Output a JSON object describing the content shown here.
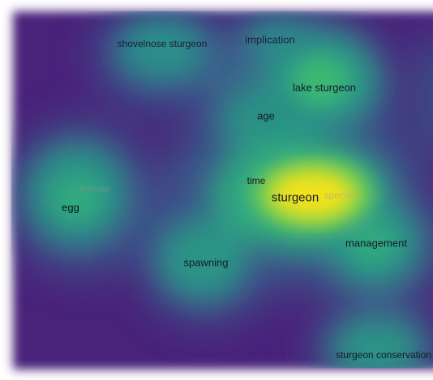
{
  "density_map": {
    "background_color": "#48217a",
    "colormap": [
      "#48217a",
      "#3a4e8c",
      "#2b8a8a",
      "#2fb47c",
      "#8ad04a",
      "#f0e21a"
    ],
    "terms": [
      {
        "id": "shovelnose-sturgeon",
        "label": "shovelnose sturgeon"
      },
      {
        "id": "implication",
        "label": "implication"
      },
      {
        "id": "lake-sturgeon",
        "label": "lake sturgeon"
      },
      {
        "id": "age",
        "label": "age"
      },
      {
        "id": "female",
        "label": "female"
      },
      {
        "id": "egg",
        "label": "egg"
      },
      {
        "id": "time",
        "label": "time"
      },
      {
        "id": "sturgeon",
        "label": "sturgeon"
      },
      {
        "id": "species",
        "label": "species"
      },
      {
        "id": "management",
        "label": "management"
      },
      {
        "id": "spawning",
        "label": "spawning"
      },
      {
        "id": "sturgeon-conservation",
        "label": "sturgeon conservation"
      }
    ]
  }
}
